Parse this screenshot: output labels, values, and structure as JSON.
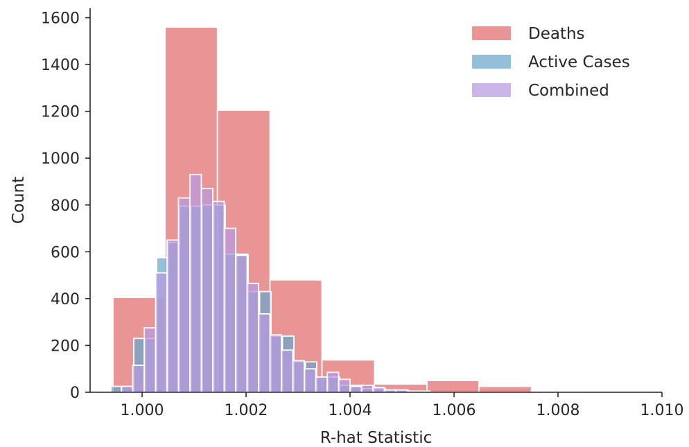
{
  "chart_data": {
    "type": "histogram",
    "xlabel": "R-hat Statistic",
    "ylabel": "Count",
    "xlim": [
      0.999,
      1.01
    ],
    "ylim": [
      0,
      1640
    ],
    "x_ticks": [
      "1.000",
      "1.002",
      "1.004",
      "1.006",
      "1.008",
      "1.010"
    ],
    "x_tick_values": [
      1.0,
      1.002,
      1.004,
      1.006,
      1.008,
      1.01
    ],
    "y_ticks": [
      "0",
      "200",
      "400",
      "600",
      "800",
      "1000",
      "1200",
      "1400",
      "1600"
    ],
    "y_tick_values": [
      0,
      200,
      400,
      600,
      800,
      1000,
      1200,
      1400,
      1600
    ],
    "grid": false,
    "legend_position": "top-right",
    "series": [
      {
        "name": "Deaths",
        "color": "#e06c6c",
        "opacity": 0.72,
        "bins": [
          {
            "x0": 0.99944,
            "x1": 1.00044,
            "count": 405
          },
          {
            "x0": 1.00044,
            "x1": 1.00145,
            "count": 1560
          },
          {
            "x0": 1.00145,
            "x1": 1.00246,
            "count": 1205
          },
          {
            "x0": 1.00246,
            "x1": 1.00346,
            "count": 480
          },
          {
            "x0": 1.00346,
            "x1": 1.00447,
            "count": 138
          },
          {
            "x0": 1.00447,
            "x1": 1.00548,
            "count": 35
          },
          {
            "x0": 1.00548,
            "x1": 1.00648,
            "count": 50
          },
          {
            "x0": 1.00648,
            "x1": 1.00749,
            "count": 25
          },
          {
            "x0": 1.00749,
            "x1": 1.0085,
            "count": 5
          }
        ]
      },
      {
        "name": "Active Cases",
        "color": "#6aa6cc",
        "opacity": 0.72,
        "bins": [
          {
            "x0": 0.9994,
            "x1": 0.99962,
            "count": 25
          },
          {
            "x0": 0.99962,
            "x1": 0.99984,
            "count": 25
          },
          {
            "x0": 0.99984,
            "x1": 1.00006,
            "count": 230
          },
          {
            "x0": 1.00006,
            "x1": 1.00028,
            "count": 230
          },
          {
            "x0": 1.00028,
            "x1": 1.0005,
            "count": 575
          },
          {
            "x0": 1.0005,
            "x1": 1.00072,
            "count": 640
          },
          {
            "x0": 1.00072,
            "x1": 1.00094,
            "count": 795
          },
          {
            "x0": 1.00094,
            "x1": 1.00116,
            "count": 795
          },
          {
            "x0": 1.00116,
            "x1": 1.00138,
            "count": 800
          },
          {
            "x0": 1.00138,
            "x1": 1.0016,
            "count": 800
          },
          {
            "x0": 1.0016,
            "x1": 1.00182,
            "count": 590
          },
          {
            "x0": 1.00182,
            "x1": 1.00204,
            "count": 590
          },
          {
            "x0": 1.00204,
            "x1": 1.00226,
            "count": 430
          },
          {
            "x0": 1.00226,
            "x1": 1.00248,
            "count": 430
          },
          {
            "x0": 1.00248,
            "x1": 1.0027,
            "count": 240
          },
          {
            "x0": 1.0027,
            "x1": 1.00292,
            "count": 240
          },
          {
            "x0": 1.00292,
            "x1": 1.00314,
            "count": 130
          },
          {
            "x0": 1.00314,
            "x1": 1.00336,
            "count": 130
          },
          {
            "x0": 1.00336,
            "x1": 1.00358,
            "count": 65
          },
          {
            "x0": 1.00358,
            "x1": 1.0038,
            "count": 65
          },
          {
            "x0": 1.0038,
            "x1": 1.00402,
            "count": 30
          },
          {
            "x0": 1.00402,
            "x1": 1.00424,
            "count": 30
          },
          {
            "x0": 1.00424,
            "x1": 1.00446,
            "count": 15
          },
          {
            "x0": 1.00446,
            "x1": 1.00468,
            "count": 15
          },
          {
            "x0": 1.00468,
            "x1": 1.0049,
            "count": 8
          },
          {
            "x0": 1.0049,
            "x1": 1.00512,
            "count": 8
          }
        ]
      },
      {
        "name": "Combined",
        "color": "#b89ae0",
        "opacity": 0.72,
        "bins": [
          {
            "x0": 0.9996,
            "x1": 0.99982,
            "count": 25
          },
          {
            "x0": 0.99982,
            "x1": 1.00004,
            "count": 115
          },
          {
            "x0": 1.00004,
            "x1": 1.00026,
            "count": 275
          },
          {
            "x0": 1.00026,
            "x1": 1.00048,
            "count": 510
          },
          {
            "x0": 1.00048,
            "x1": 1.0007,
            "count": 650
          },
          {
            "x0": 1.0007,
            "x1": 1.00092,
            "count": 830
          },
          {
            "x0": 1.00092,
            "x1": 1.00114,
            "count": 930
          },
          {
            "x0": 1.00114,
            "x1": 1.00136,
            "count": 870
          },
          {
            "x0": 1.00136,
            "x1": 1.00158,
            "count": 815
          },
          {
            "x0": 1.00158,
            "x1": 1.0018,
            "count": 700
          },
          {
            "x0": 1.0018,
            "x1": 1.00202,
            "count": 585
          },
          {
            "x0": 1.00202,
            "x1": 1.00224,
            "count": 465
          },
          {
            "x0": 1.00224,
            "x1": 1.00246,
            "count": 335
          },
          {
            "x0": 1.00246,
            "x1": 1.00268,
            "count": 245
          },
          {
            "x0": 1.00268,
            "x1": 1.0029,
            "count": 180
          },
          {
            "x0": 1.0029,
            "x1": 1.00312,
            "count": 135
          },
          {
            "x0": 1.00312,
            "x1": 1.00334,
            "count": 100
          },
          {
            "x0": 1.00334,
            "x1": 1.00356,
            "count": 65
          },
          {
            "x0": 1.00356,
            "x1": 1.00378,
            "count": 85
          },
          {
            "x0": 1.00378,
            "x1": 1.004,
            "count": 55
          },
          {
            "x0": 1.004,
            "x1": 1.00422,
            "count": 25
          },
          {
            "x0": 1.00422,
            "x1": 1.00444,
            "count": 30
          },
          {
            "x0": 1.00444,
            "x1": 1.00466,
            "count": 20
          },
          {
            "x0": 1.00466,
            "x1": 1.00488,
            "count": 10
          },
          {
            "x0": 1.00488,
            "x1": 1.0051,
            "count": 10
          },
          {
            "x0": 1.0051,
            "x1": 1.00532,
            "count": 5
          },
          {
            "x0": 1.00532,
            "x1": 1.00554,
            "count": 5
          }
        ]
      }
    ]
  }
}
